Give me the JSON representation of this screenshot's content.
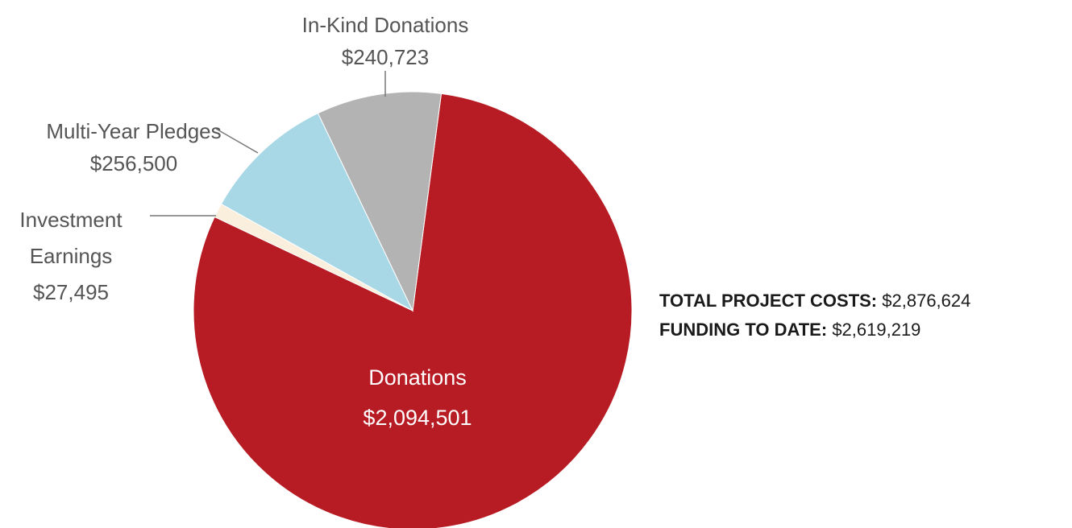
{
  "chart_data": {
    "type": "pie",
    "slices": [
      {
        "label": "Donations",
        "value_label": "$2,094,501",
        "value": 2094501,
        "color": "#b71c24"
      },
      {
        "label": "Investment Earnings",
        "value_label": "$27,495",
        "value": 27495,
        "color": "#faefdc"
      },
      {
        "label": "Multi-Year Pledges",
        "value_label": "$256,500",
        "value": 256500,
        "color": "#a8d8e6"
      },
      {
        "label": "In-Kind Donations",
        "value_label": "$240,723",
        "value": 240723,
        "color": "#b3b3b3"
      }
    ],
    "labels": {
      "in_kind_line1": "In-Kind Donations",
      "in_kind_line2": "$240,723",
      "pledges_line1": "Multi-Year Pledges",
      "pledges_line2": "$256,500",
      "investment_line1": "Investment",
      "investment_line2": "Earnings",
      "investment_line3": "$27,495",
      "donations_line1": "Donations",
      "donations_line2": "$2,094,501"
    }
  },
  "summary": {
    "total_label": "TOTAL PROJECT COSTS:",
    "total_value": "$2,876,624",
    "funding_label": "FUNDING TO DATE:",
    "funding_value": "$2,619,219"
  }
}
